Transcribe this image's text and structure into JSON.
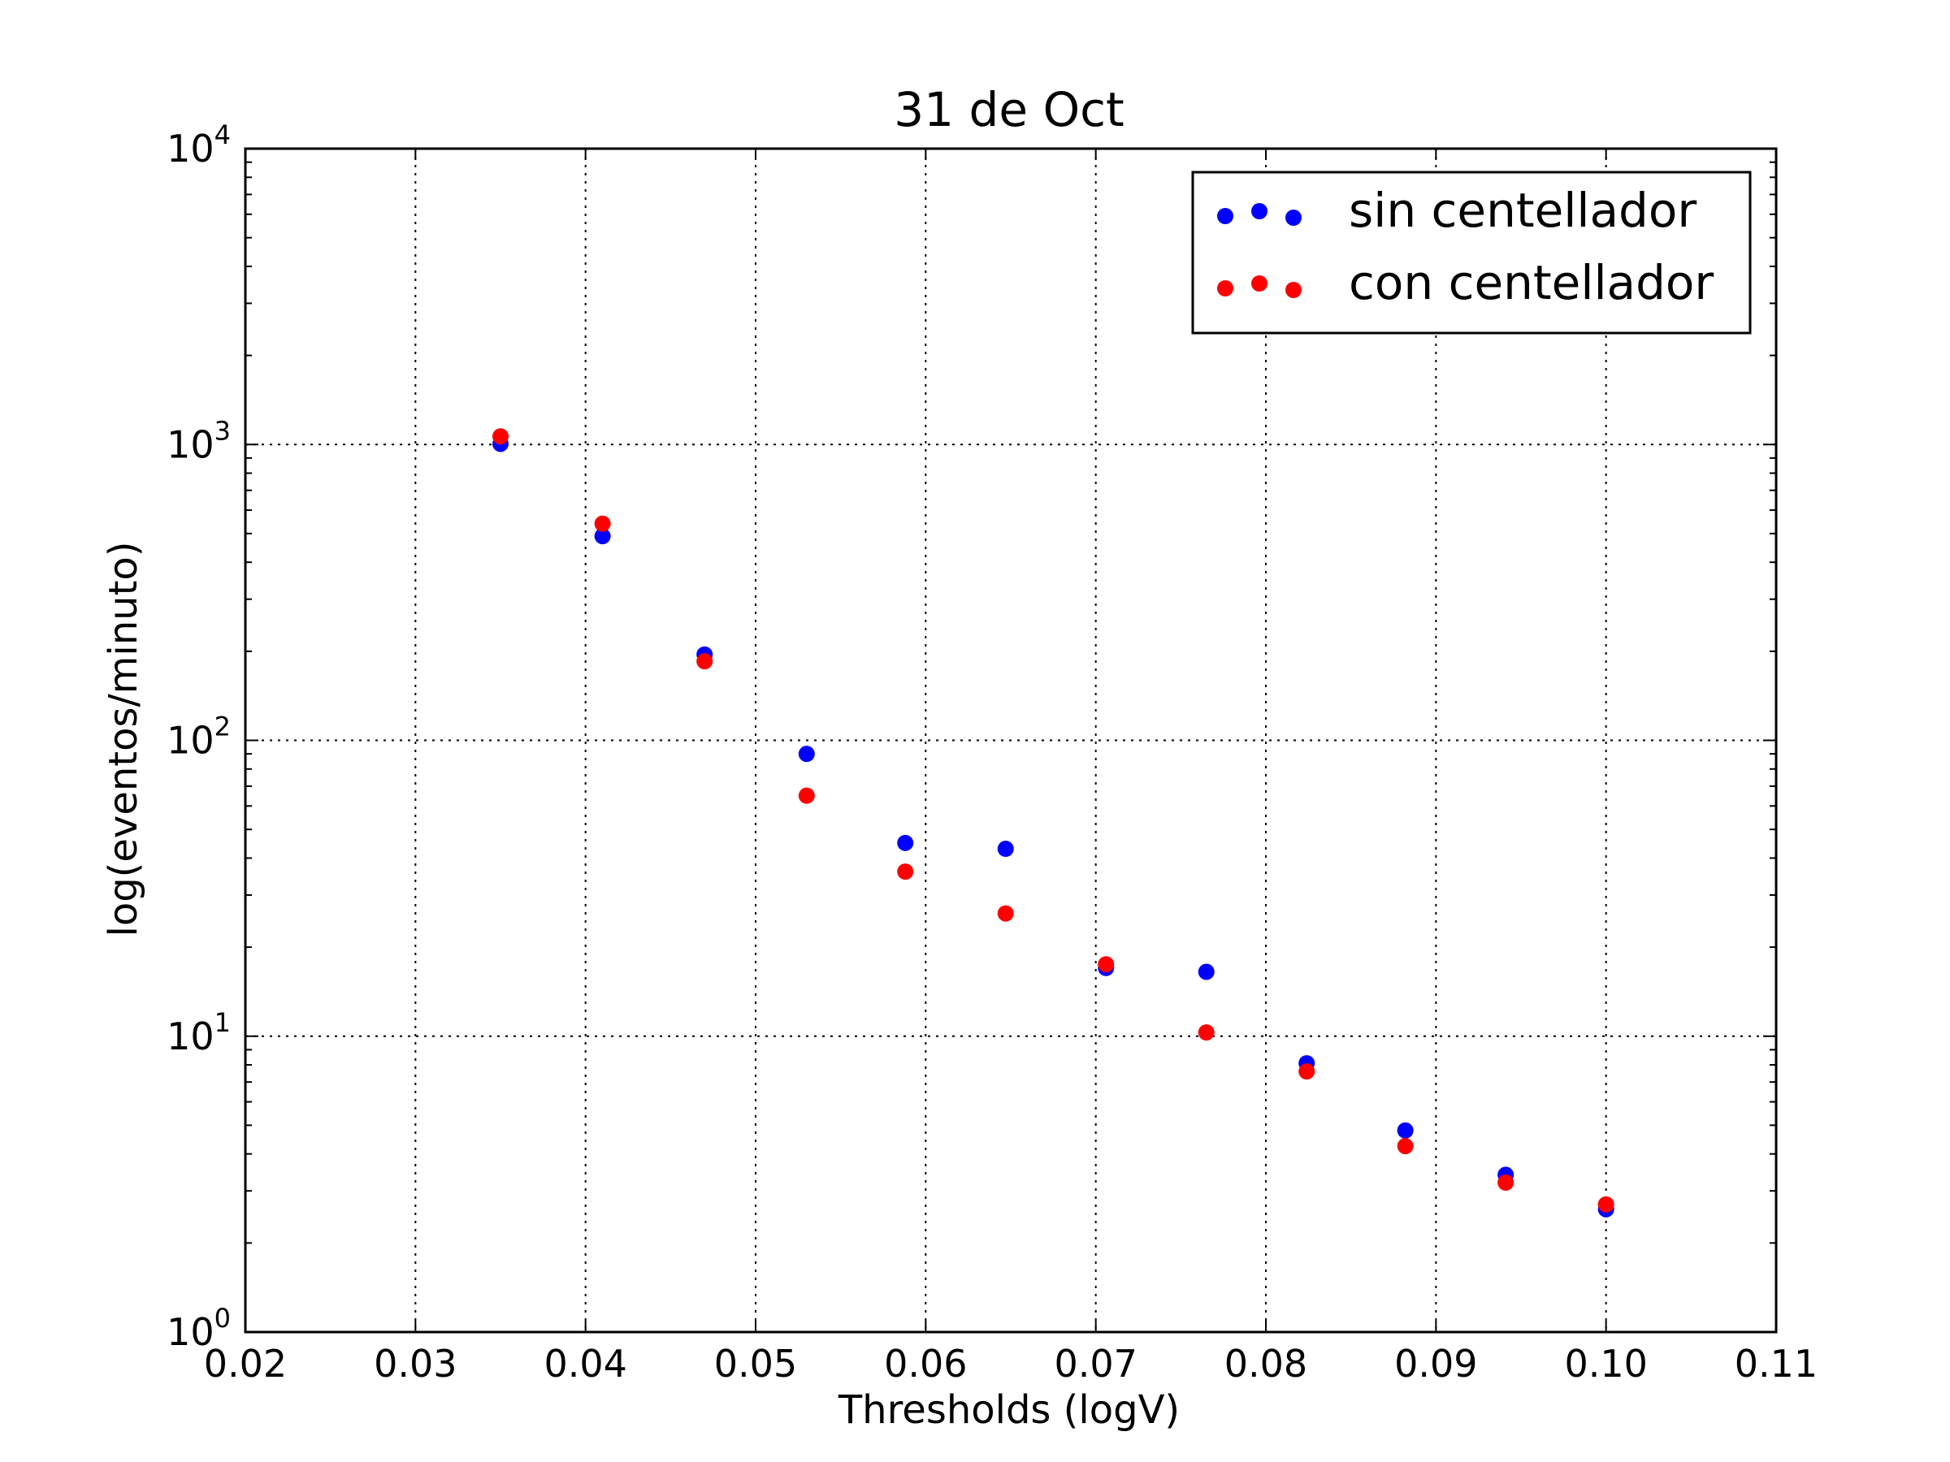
{
  "chart_data": {
    "type": "scatter",
    "title": "31 de Oct",
    "xlabel": "Thresholds (logV)",
    "ylabel": "log(eventos/minuto)",
    "xlim": [
      0.02,
      0.11
    ],
    "ylim": [
      1,
      10000
    ],
    "yscale": "log",
    "xticks": [
      "0.02",
      "0.03",
      "0.04",
      "0.05",
      "0.06",
      "0.07",
      "0.08",
      "0.09",
      "0.10",
      "0.11"
    ],
    "yticks": [
      {
        "base": "10",
        "exp": "0"
      },
      {
        "base": "10",
        "exp": "1"
      },
      {
        "base": "10",
        "exp": "2"
      },
      {
        "base": "10",
        "exp": "3"
      },
      {
        "base": "10",
        "exp": "4"
      }
    ],
    "grid": true,
    "legend_position": "top-right",
    "x": [
      0.035,
      0.041,
      0.047,
      0.053,
      0.0588,
      0.0647,
      0.0706,
      0.0765,
      0.0824,
      0.0882,
      0.0941,
      0.1
    ],
    "series": [
      {
        "name": "sin centellador",
        "color": "#0000ff",
        "values": [
          1005,
          490,
          195,
          90,
          45,
          43,
          17,
          16.5,
          8.1,
          4.8,
          3.4,
          2.6
        ]
      },
      {
        "name": "con centellador",
        "color": "#ff0000",
        "values": [
          1065,
          540,
          185,
          65,
          36,
          26,
          17.5,
          10.3,
          7.6,
          4.25,
          3.2,
          2.7
        ]
      }
    ]
  }
}
